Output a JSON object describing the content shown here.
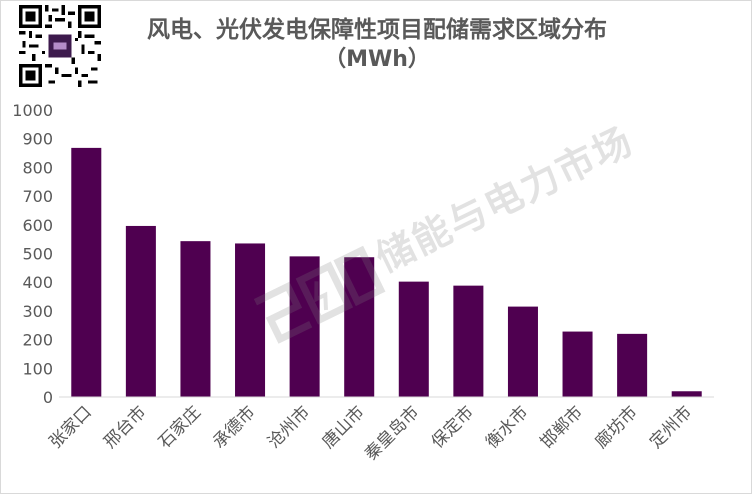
{
  "title_line1": "风电、光伏发电保障性项目配储需求区域分布",
  "title_line2": "（MWh）",
  "watermark_text": "储能与电力市场",
  "chart_data": {
    "type": "bar",
    "title": "风电、光伏发电保障性项目配储需求区域分布（MWh）",
    "categories": [
      "张家口",
      "邢台市",
      "石家庄",
      "承德市",
      "沧州市",
      "唐山市",
      "秦皇岛市",
      "保定市",
      "衡水市",
      "邯郸市",
      "廊坊市",
      "定州市"
    ],
    "series": [
      {
        "values": [
          868,
          596,
          543,
          535,
          490,
          487,
          402,
          388,
          315,
          228,
          220,
          20
        ]
      }
    ],
    "ylim": [
      0,
      1000
    ],
    "yticks": [
      0,
      100,
      200,
      300,
      400,
      500,
      600,
      700,
      800,
      900,
      1000
    ],
    "grid": false,
    "legend": "none",
    "bar_color": "#4f0050",
    "axis_text_color": "#595959"
  }
}
